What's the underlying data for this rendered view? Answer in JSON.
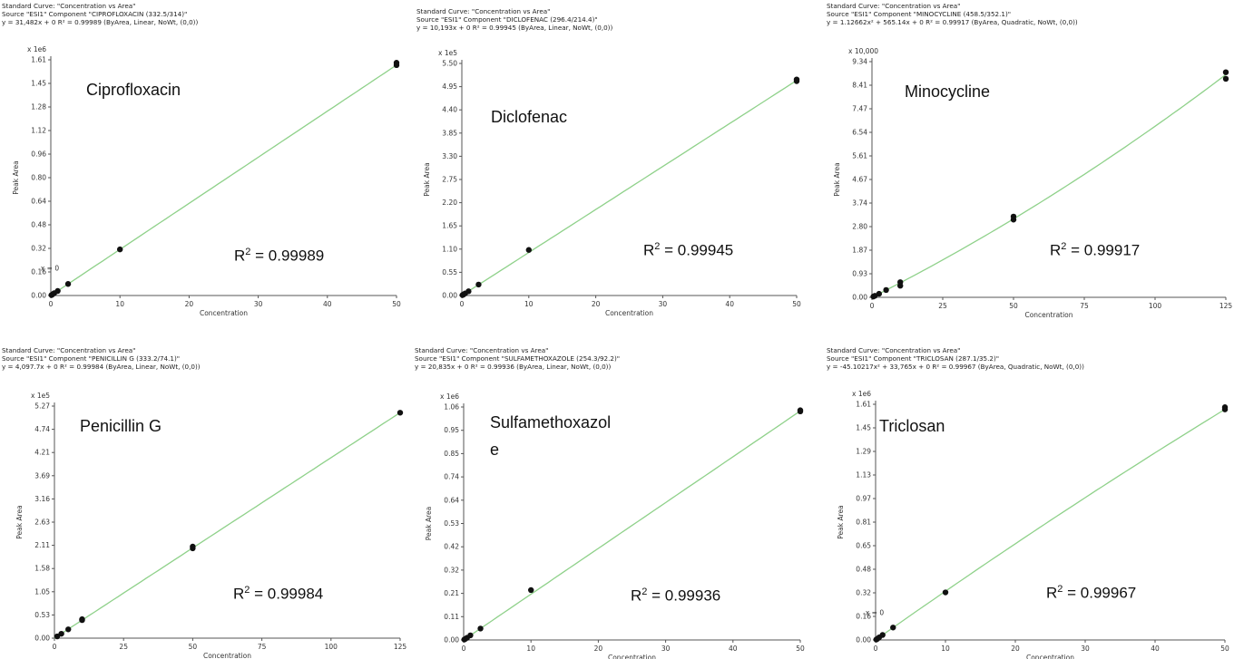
{
  "colors": {
    "fit_line": "#8fd18a",
    "points": "#111111",
    "axis": "#555555",
    "origin_marker": "#cc0000"
  },
  "charts": [
    {
      "name": "ciprofloxacin",
      "header": [
        "Standard Curve: \"Concentration vs Area\"",
        "Source \"ESI1\" Component \"CIPROFLOXACIN (332.5/314)\"",
        "y = 31,482x + 0    R² = 0.99989  (ByArea, Linear, NoWt, (0,0))"
      ],
      "compound_label": "Ciprofloxacin",
      "r2_prefix": "R",
      "r2_exp": "2",
      "r2_value": " = 0.99989",
      "chart_data": {
        "type": "scatter",
        "xlabel": "Concentration",
        "ylabel": "Peak Area",
        "y_multiplier": "x 1e6",
        "x_ticks": [
          "0",
          "10",
          "20",
          "30",
          "40",
          "50"
        ],
        "y_ticks": [
          "0.00",
          "0.16",
          "0.32",
          "0.48",
          "0.64",
          "0.80",
          "0.96",
          "1.12",
          "1.28",
          "1.45",
          "1.61"
        ],
        "xlim": [
          0,
          50
        ],
        "ylim": [
          0,
          1.61
        ],
        "points": [
          [
            0.1,
            0.003
          ],
          [
            0.25,
            0.008
          ],
          [
            0.5,
            0.016
          ],
          [
            1,
            0.031
          ],
          [
            2.5,
            0.079
          ],
          [
            10,
            0.315
          ],
          [
            50,
            1.574
          ],
          [
            50,
            1.59
          ]
        ],
        "fit": {
          "slope": 0.031482,
          "quad": 0
        },
        "origin_label": "x = 0"
      }
    },
    {
      "name": "diclofenac",
      "header": [
        "Standard Curve: \"Concentration vs Area\"",
        "Source \"ESI1\" Component \"DICLOFENAC (296.4/214.4)\"",
        "y = 10,193x + 0    R² = 0.99945  (ByArea, Linear, NoWt, (0,0))"
      ],
      "compound_label": "Diclofenac",
      "r2_prefix": "R",
      "r2_exp": "2",
      "r2_value": " = 0.99945",
      "chart_data": {
        "type": "scatter",
        "xlabel": "Concentration",
        "ylabel": "Peak Area",
        "y_multiplier": "x 1e5",
        "x_ticks": [
          "0",
          "10",
          "20",
          "30",
          "40",
          "50"
        ],
        "y_ticks": [
          "0.00",
          "0.55",
          "1.10",
          "1.65",
          "2.20",
          "2.75",
          "3.30",
          "3.85",
          "4.40",
          "4.95",
          "5.50"
        ],
        "xlim": [
          0,
          50
        ],
        "ylim": [
          0,
          5.5
        ],
        "points": [
          [
            0.1,
            0.01
          ],
          [
            0.25,
            0.025
          ],
          [
            0.5,
            0.05
          ],
          [
            1,
            0.1
          ],
          [
            2.5,
            0.26
          ],
          [
            10,
            1.08
          ],
          [
            50,
            5.08
          ],
          [
            50,
            5.12
          ]
        ],
        "fit": {
          "slope": 0.10193,
          "quad": 0
        },
        "origin_label": ""
      }
    },
    {
      "name": "minocycline",
      "header": [
        "Standard Curve: \"Concentration vs Area\"",
        "Source \"ESI1\" Component \"MINOCYCLINE (458.5/352.1)\"",
        "y = 1.12662x² + 565.14x + 0    R² = 0.99917  (ByArea, Quadratic, NoWt, (0,0))"
      ],
      "compound_label": "Minocycline",
      "r2_prefix": "R",
      "r2_exp": "2",
      "r2_value": " = 0.99917",
      "chart_data": {
        "type": "scatter",
        "xlabel": "Concentration",
        "ylabel": "Peak Area",
        "y_multiplier": "x 10,000",
        "x_ticks": [
          "0",
          "25",
          "50",
          "75",
          "100",
          "125"
        ],
        "y_ticks": [
          "0.00",
          "0.93",
          "1.87",
          "2.80",
          "3.74",
          "4.67",
          "5.61",
          "6.54",
          "7.47",
          "8.41",
          "9.34"
        ],
        "xlim": [
          0,
          125
        ],
        "ylim": [
          0,
          9.34
        ],
        "points": [
          [
            0.5,
            0.03
          ],
          [
            1,
            0.06
          ],
          [
            2.5,
            0.14
          ],
          [
            5,
            0.29
          ],
          [
            10,
            0.46
          ],
          [
            10,
            0.6
          ],
          [
            50,
            3.08
          ],
          [
            50,
            3.2
          ],
          [
            125,
            8.66
          ],
          [
            125,
            8.92
          ]
        ],
        "fit": {
          "slope": 0.056514,
          "quad": 0.000112662
        },
        "origin_label": ""
      }
    },
    {
      "name": "penicillin-g",
      "header": [
        "Standard Curve: \"Concentration vs Area\"",
        "Source \"ESI1\" Component \"PENICILLIN G (333.2/74.1)\"",
        "y = 4,097.7x + 0    R² = 0.99984  (ByArea, Linear, NoWt, (0,0))"
      ],
      "compound_label": "Penicillin G",
      "r2_prefix": "R",
      "r2_exp": "2",
      "r2_value": " = 0.99984",
      "chart_data": {
        "type": "scatter",
        "xlabel": "Concentration",
        "ylabel": "Peak Area",
        "y_multiplier": "x 1e5",
        "x_ticks": [
          "0",
          "25",
          "50",
          "75",
          "100",
          "125"
        ],
        "y_ticks": [
          "0.00",
          "0.53",
          "1.05",
          "1.58",
          "2.11",
          "2.63",
          "3.16",
          "3.69",
          "4.21",
          "4.74",
          "5.27"
        ],
        "xlim": [
          0,
          125
        ],
        "ylim": [
          0,
          5.27
        ],
        "points": [
          [
            1,
            0.04
          ],
          [
            2.5,
            0.1
          ],
          [
            5,
            0.2
          ],
          [
            10,
            0.41
          ],
          [
            10,
            0.43
          ],
          [
            50,
            2.04
          ],
          [
            50,
            2.08
          ],
          [
            125,
            5.12
          ]
        ],
        "fit": {
          "slope": 0.040977,
          "quad": 0
        },
        "origin_label": ""
      }
    },
    {
      "name": "sulfamethoxazole",
      "header": [
        "Standard Curve: \"Concentration vs Area\"",
        "Source \"ESI1\" Component \"SULFAMETHOXAZOLE (254.3/92.2)\"",
        "y = 20,835x + 0    R² = 0.99936  (ByArea, Linear, NoWt, (0,0))"
      ],
      "compound_label": "Sulfamethoxazol\ne",
      "r2_prefix": "R",
      "r2_exp": "2",
      "r2_value": " = 0.99936",
      "chart_data": {
        "type": "scatter",
        "xlabel": "Concentration",
        "ylabel": "Peak Area",
        "y_multiplier": "x 1e6",
        "x_ticks": [
          "0",
          "10",
          "20",
          "30",
          "40",
          "50"
        ],
        "y_ticks": [
          "0.00",
          "0.11",
          "0.21",
          "0.32",
          "0.42",
          "0.53",
          "0.64",
          "0.74",
          "0.85",
          "0.95",
          "1.06"
        ],
        "xlim": [
          0,
          50
        ],
        "ylim": [
          0,
          1.06
        ],
        "points": [
          [
            0.1,
            0.002
          ],
          [
            0.25,
            0.005
          ],
          [
            0.5,
            0.01
          ],
          [
            1,
            0.021
          ],
          [
            2.5,
            0.052
          ],
          [
            10,
            0.227
          ],
          [
            50,
            1.04
          ],
          [
            50,
            1.045
          ]
        ],
        "fit": {
          "slope": 0.020835,
          "quad": 0
        },
        "origin_label": ""
      }
    },
    {
      "name": "triclosan",
      "header": [
        "Standard Curve: \"Concentration vs Area\"",
        "Source \"ESI1\" Component \"TRICLOSAN (287.1/35.2)\"",
        "y = -45.10217x² + 33,765x + 0    R² = 0.99967  (ByArea, Quadratic, NoWt, (0,0))"
      ],
      "compound_label": "Triclosan",
      "r2_prefix": "R",
      "r2_exp": "2",
      "r2_value": " = 0.99967",
      "chart_data": {
        "type": "scatter",
        "xlabel": "Concentration",
        "ylabel": "Peak Area",
        "y_multiplier": "x 1e6",
        "x_ticks": [
          "0",
          "10",
          "20",
          "30",
          "40",
          "50"
        ],
        "y_ticks": [
          "0.00",
          "0.16",
          "0.32",
          "0.48",
          "0.65",
          "0.81",
          "0.97",
          "1.13",
          "1.29",
          "1.45",
          "1.61"
        ],
        "xlim": [
          0,
          50
        ],
        "ylim": [
          0,
          1.61
        ],
        "points": [
          [
            0.1,
            0.003
          ],
          [
            0.25,
            0.008
          ],
          [
            0.5,
            0.017
          ],
          [
            1,
            0.034
          ],
          [
            2.5,
            0.085
          ],
          [
            10,
            0.325
          ],
          [
            50,
            1.575
          ],
          [
            50,
            1.59
          ]
        ],
        "fit": {
          "slope": 0.033765,
          "quad": -4.51e-05
        },
        "origin_label": "x = 0"
      }
    }
  ]
}
